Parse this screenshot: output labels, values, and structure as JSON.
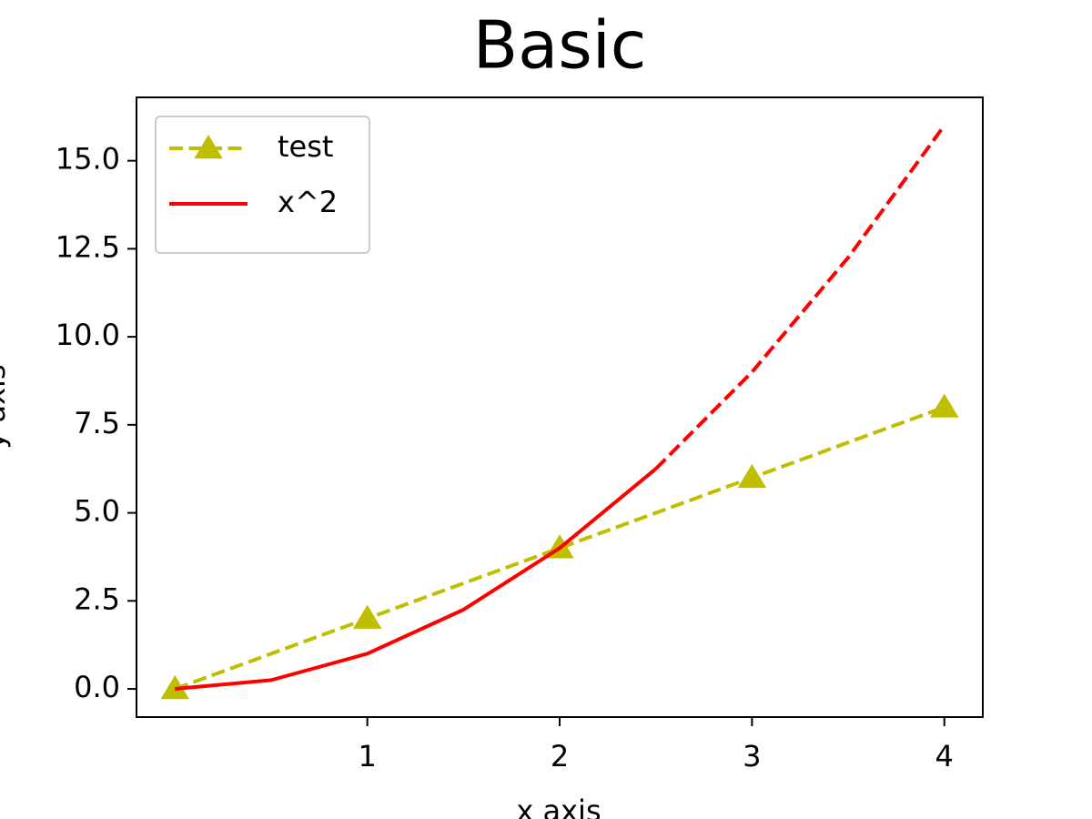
{
  "chart_data": {
    "type": "line",
    "title": "Basic",
    "x_label": "x axis",
    "y_label": "y axis",
    "xlim": [
      -0.2,
      4.2
    ],
    "ylim": [
      -0.8,
      16.8
    ],
    "xticks": [
      1,
      2,
      3,
      4
    ],
    "yticks": [
      {
        "value": 0,
        "label": "0.0"
      },
      2.5,
      {
        "value": 5,
        "label": "5.0"
      },
      7.5,
      {
        "value": 10,
        "label": "10.0"
      },
      12.5,
      {
        "value": 15,
        "label": "15.0"
      }
    ],
    "grid": false,
    "legend": "upper left",
    "series": [
      {
        "name": "test",
        "color": "#bfbf00",
        "linestyle": "dashed",
        "marker": "^",
        "x": [
          0,
          1,
          2,
          3,
          4
        ],
        "values": [
          0,
          2,
          4,
          6,
          8
        ]
      },
      {
        "name": "x^2",
        "color": "#ff0000",
        "linestyle": "solid",
        "x": [
          0,
          0.5,
          1,
          1.5,
          2,
          2.5
        ],
        "values": [
          0,
          0.25,
          1,
          2.25,
          4,
          6.25
        ]
      },
      {
        "color": "#ff0000",
        "linestyle": "dashed",
        "x": [
          2.5,
          3,
          3.5,
          4
        ],
        "values": [
          6.25,
          9,
          12.25,
          16
        ]
      }
    ]
  }
}
